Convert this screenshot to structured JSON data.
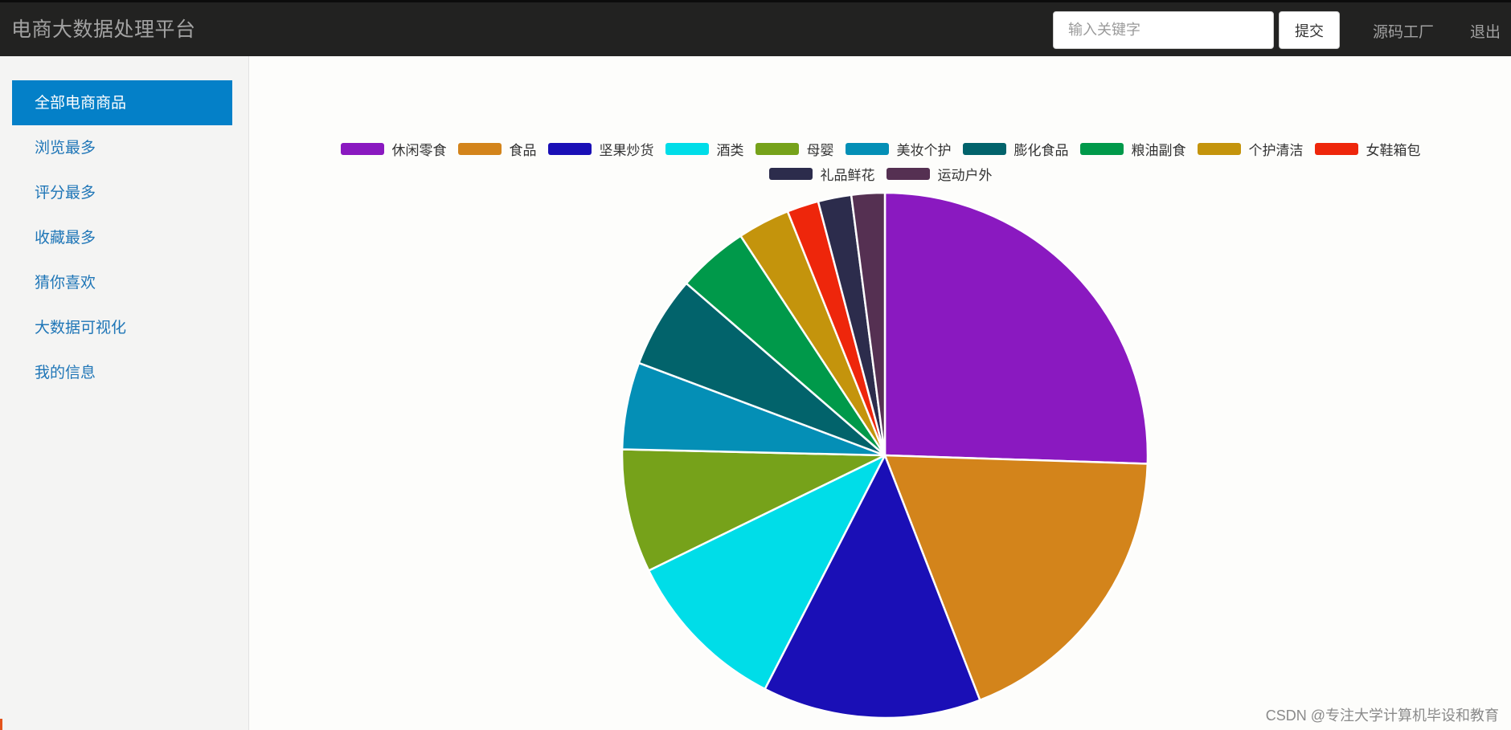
{
  "header": {
    "brand": "电商大数据处理平台",
    "search_placeholder": "输入关键字",
    "search_value": "",
    "submit_label": "提交",
    "source_link": "源码工厂",
    "logout_link": "退出"
  },
  "sidebar": {
    "items": [
      {
        "label": "全部电商商品",
        "active": true
      },
      {
        "label": "浏览最多",
        "active": false
      },
      {
        "label": "评分最多",
        "active": false
      },
      {
        "label": "收藏最多",
        "active": false
      },
      {
        "label": "猜你喜欢",
        "active": false
      },
      {
        "label": "大数据可视化",
        "active": false
      },
      {
        "label": "我的信息",
        "active": false
      }
    ]
  },
  "chart_data": {
    "type": "pie",
    "title": "",
    "legend_position": "top",
    "categories": [
      "休闲零食",
      "食品",
      "坚果炒货",
      "酒类",
      "母婴",
      "美妆个护",
      "膨化食品",
      "粮油副食",
      "个护清洁",
      "女鞋箱包",
      "礼品鲜花",
      "运动户外"
    ],
    "values": [
      26.2,
      19.1,
      13.8,
      10.5,
      7.8,
      5.5,
      5.8,
      4.5,
      3.3,
      2.0,
      2.1,
      2.1
    ],
    "colors": [
      "#8a19c0",
      "#d3841b",
      "#1a0fb6",
      "#00dde8",
      "#76a21a",
      "#048fb6",
      "#02636b",
      "#00994a",
      "#c4940c",
      "#ee260b",
      "#2c2c4c",
      "#553052"
    ]
  },
  "watermark": "CSDN @专注大学计算机毕设和教育"
}
